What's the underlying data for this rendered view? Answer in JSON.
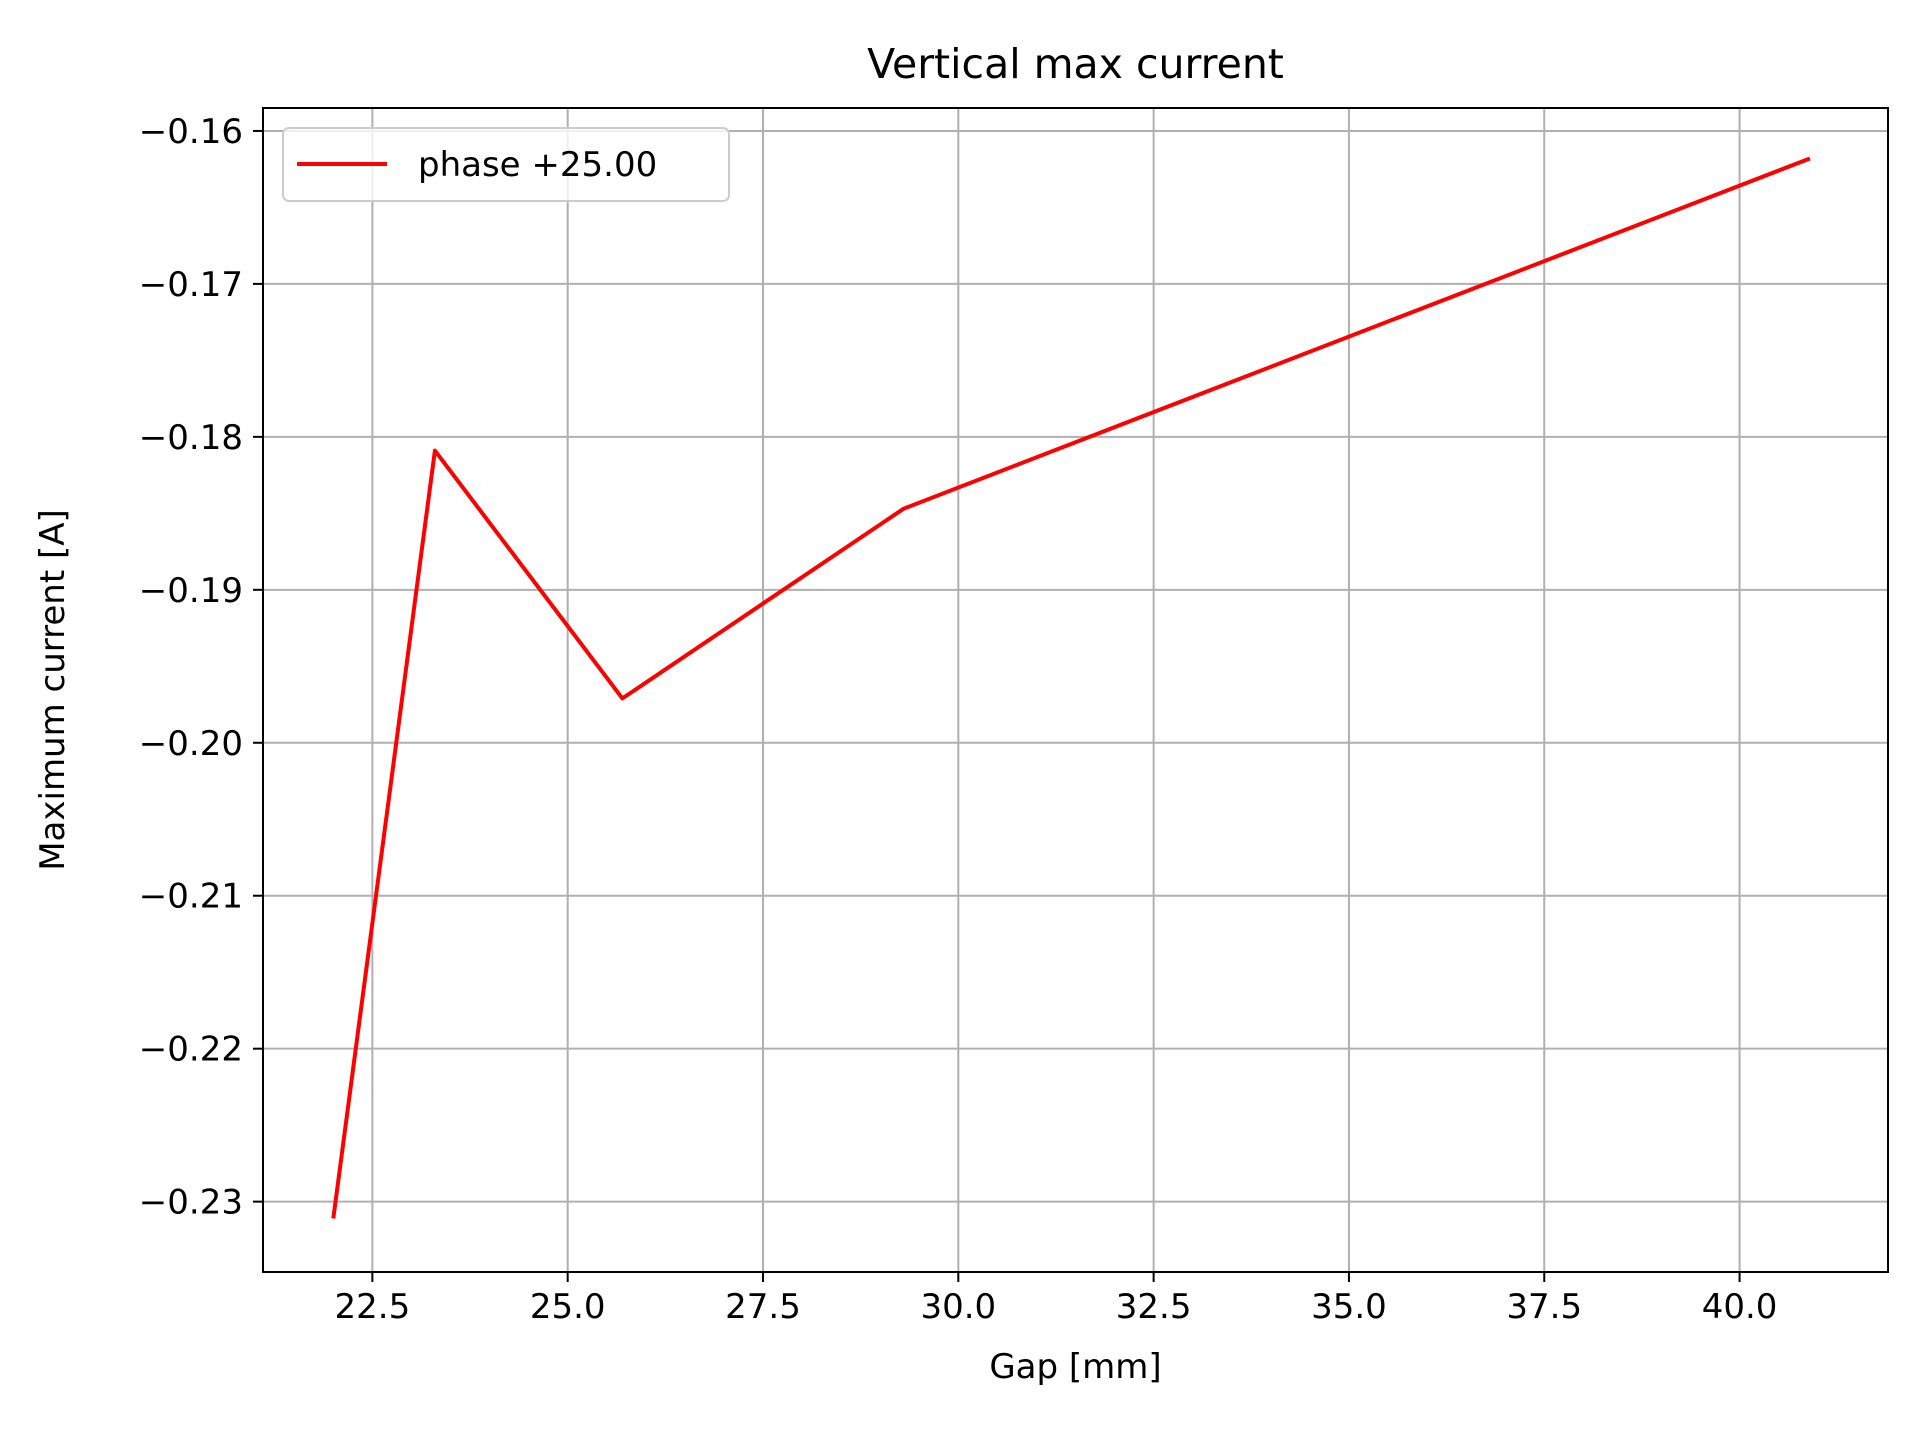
{
  "chart_data": {
    "type": "line",
    "title": "Vertical max current",
    "xlabel": "Gap [mm]",
    "ylabel": "Maximum current [A]",
    "xlim": [
      21.1,
      41.9
    ],
    "ylim": [
      -0.2346,
      -0.1585
    ],
    "xticks": [
      22.5,
      25.0,
      27.5,
      30.0,
      32.5,
      35.0,
      37.5,
      40.0
    ],
    "xtick_labels": [
      "22.5",
      "25.0",
      "27.5",
      "30.0",
      "32.5",
      "35.0",
      "37.5",
      "40.0"
    ],
    "yticks": [
      -0.16,
      -0.17,
      -0.18,
      -0.19,
      -0.2,
      -0.21,
      -0.22,
      -0.23
    ],
    "ytick_labels": [
      "−0.16",
      "−0.17",
      "−0.18",
      "−0.19",
      "−0.20",
      "−0.21",
      "−0.22",
      "−0.23"
    ],
    "grid": true,
    "legend_position": "top-left",
    "series": [
      {
        "name": "phase +25.00",
        "color": "#ff0000",
        "x": [
          22.0,
          23.3,
          25.7,
          29.3,
          40.9
        ],
        "y": [
          -0.2311,
          -0.1809,
          -0.1971,
          -0.1847,
          -0.1618
        ]
      }
    ]
  }
}
